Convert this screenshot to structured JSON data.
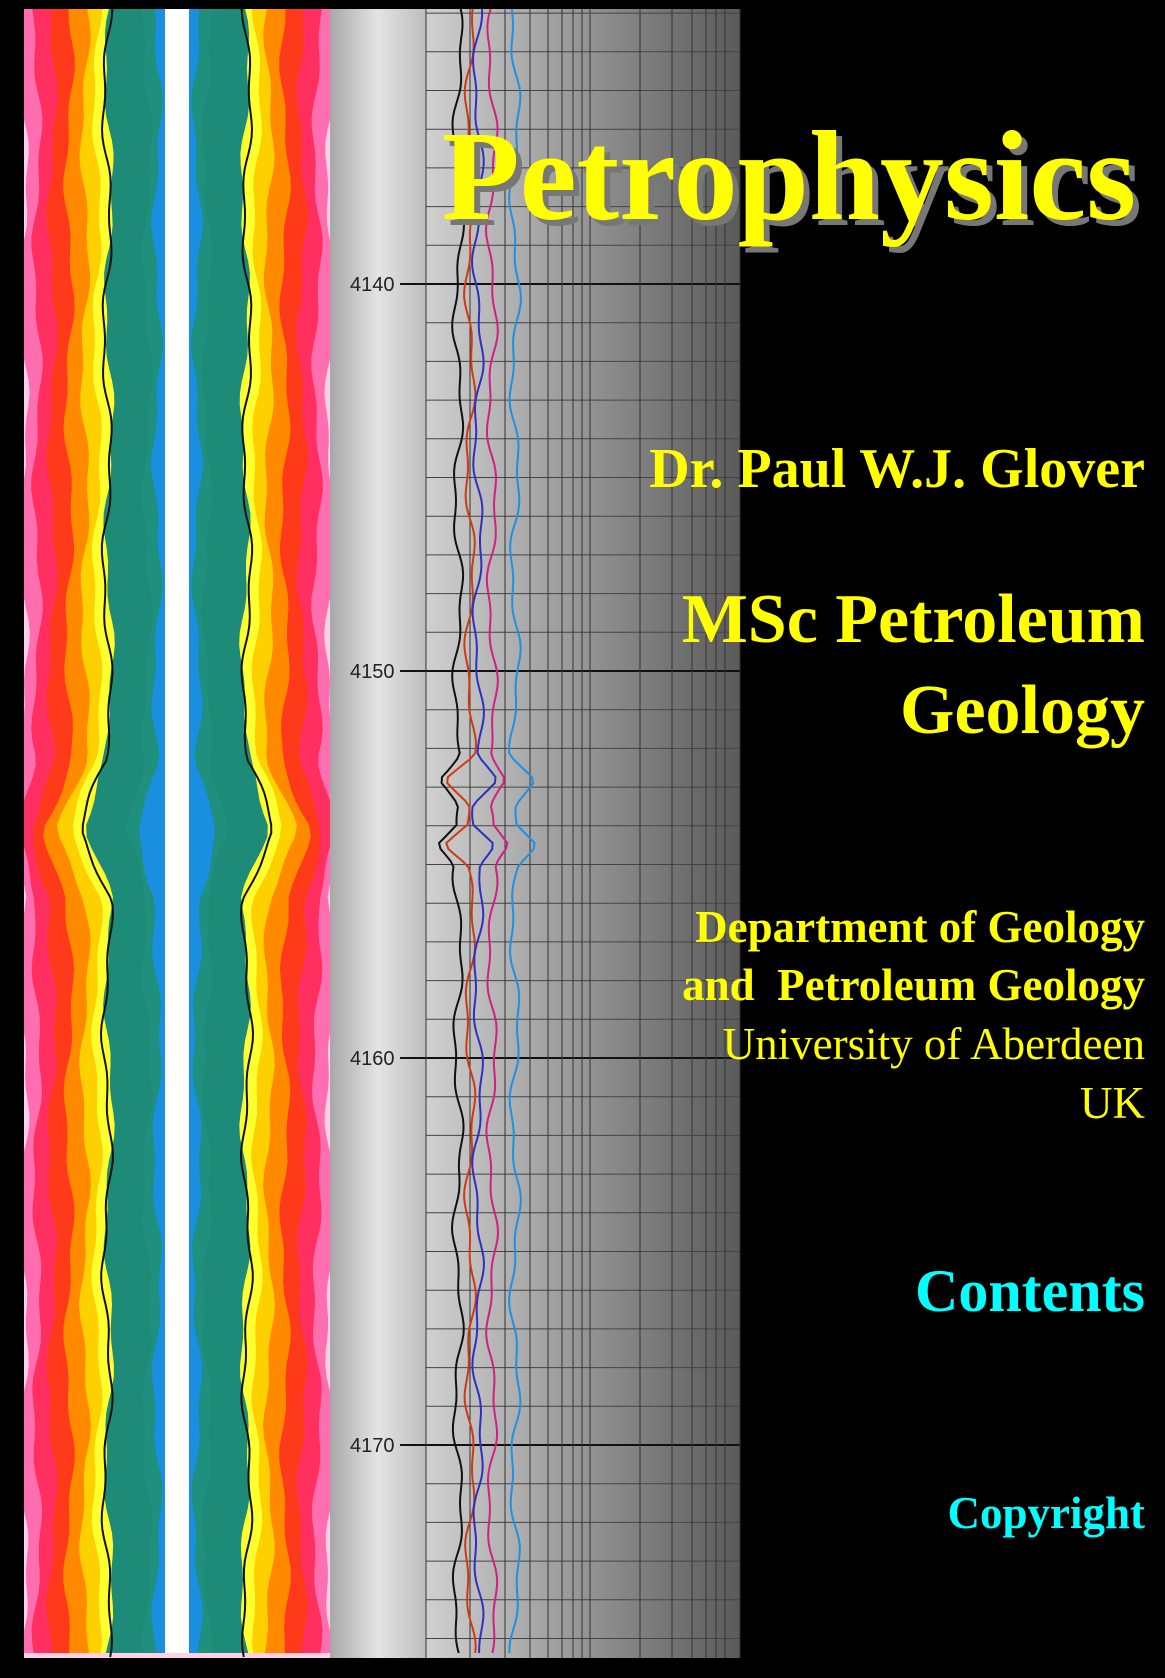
{
  "title": "Petrophysics",
  "author": "Dr. Paul W.J. Glover",
  "course": [
    "MSc Petroleum",
    "Geology"
  ],
  "department": [
    "Department of Geology",
    "and  Petroleum Geology"
  ],
  "institution": [
    "University of Aberdeen",
    "UK"
  ],
  "links": {
    "contents": "Contents",
    "copyright": "Copyright"
  },
  "depth_labels": [
    4140,
    4150,
    4160,
    4170
  ]
}
